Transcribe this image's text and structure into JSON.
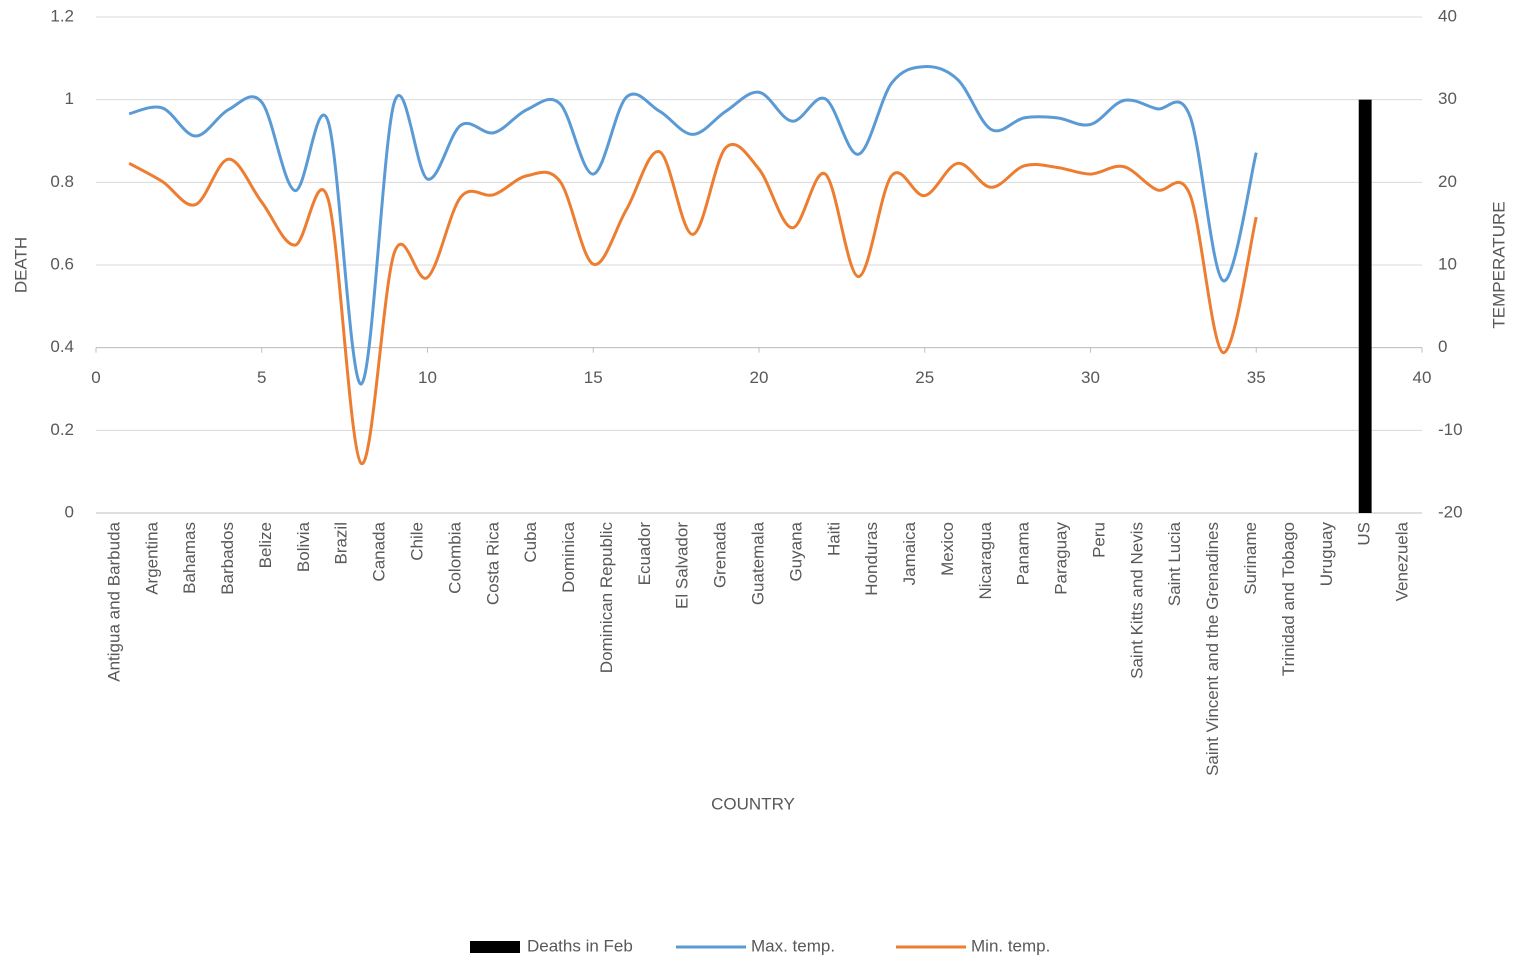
{
  "chart_data": {
    "type": "bar",
    "categories": [
      "Antigua and Barbuda",
      "Argentina",
      "Bahamas",
      "Barbados",
      "Belize",
      "Bolivia",
      "Brazil",
      "Canada",
      "Chile",
      "Colombia",
      "Costa Rica",
      "Cuba",
      "Dominica",
      "Dominican Republic",
      "Ecuador",
      "El Salvador",
      "Grenada",
      "Guatemala",
      "Guyana",
      "Haiti",
      "Honduras",
      "Jamaica",
      "Mexico",
      "Nicaragua",
      "Panama",
      "Paraguay",
      "Peru",
      "Saint Kitts and Nevis",
      "Saint Lucia",
      "Saint Vincent and the Grenadines",
      "Suriname",
      "Trinidad and Tobago",
      "Uruguay",
      "US",
      "Venezuela"
    ],
    "x": [
      1,
      2,
      3,
      4,
      5,
      6,
      7,
      8,
      9,
      10,
      11,
      12,
      13,
      14,
      15,
      16,
      17,
      18,
      19,
      20,
      21,
      22,
      23,
      24,
      25,
      26,
      27,
      28,
      29,
      30,
      31,
      32,
      33,
      34,
      35
    ],
    "series": [
      {
        "name": "Deaths in Feb",
        "color": "#000000",
        "type": "bar",
        "values": [
          null,
          null,
          null,
          null,
          null,
          null,
          null,
          null,
          null,
          null,
          null,
          null,
          null,
          null,
          null,
          null,
          null,
          null,
          null,
          null,
          null,
          null,
          null,
          null,
          null,
          null,
          null,
          null,
          null,
          null,
          null,
          null,
          null,
          1,
          null
        ]
      },
      {
        "name": "Max. temp.",
        "color": "#5b9bd5",
        "type": "line",
        "axis": "y2",
        "values": [
          28.3,
          29,
          25.6,
          28.8,
          29.7,
          19,
          27.4,
          -4.4,
          29.7,
          20.4,
          26.9,
          26,
          28.8,
          29.5,
          21,
          30.3,
          28.6,
          25.8,
          28.6,
          30.9,
          27.4,
          30.1,
          23.4,
          32,
          34,
          32.4,
          26.4,
          27.8,
          27.8,
          27,
          29.9,
          28.9,
          28,
          8.1,
          23.6
        ]
      },
      {
        "name": "Min. temp.",
        "color": "#ed7d31",
        "type": "line",
        "axis": "y2",
        "values": [
          22.3,
          20.1,
          17.3,
          22.8,
          17.6,
          12.4,
          18,
          -14,
          11.5,
          8.5,
          18.2,
          18.5,
          20.8,
          20.1,
          10.1,
          16.7,
          23.7,
          13.7,
          24.2,
          21.6,
          14.5,
          21,
          8.6,
          20.8,
          18.4,
          22.3,
          19.4,
          22,
          21.8,
          21,
          21.9,
          19.1,
          18.5,
          -0.6,
          15.8
        ]
      }
    ],
    "ylim": [
      0,
      1.2
    ],
    "yticks": [
      0,
      0.2,
      0.4,
      0.6,
      0.8,
      1,
      1.2
    ],
    "y2lim": [
      -20,
      40
    ],
    "y2ticks": [
      -20,
      -10,
      0,
      10,
      20,
      30,
      40
    ],
    "xlim": [
      0,
      40
    ],
    "xticks": [
      0,
      5,
      10,
      15,
      20,
      25,
      30,
      35,
      40
    ],
    "ylabel": "DEATH",
    "y2label": "TEMPERATURE",
    "xlabel": "COUNTRY",
    "grid": true,
    "legend": "bottom"
  }
}
